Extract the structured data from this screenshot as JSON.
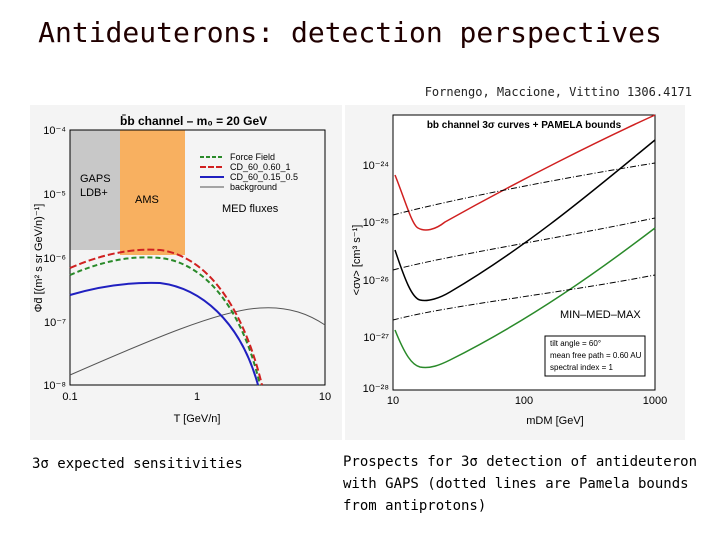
{
  "title": "Antideuterons: detection perspectives",
  "reference": "Fornengo, Maccione, Vittino 1306.4171",
  "left_figure": {
    "title": "b̄b channel – m₀ = 20 GeV",
    "y_ticks": [
      "10⁻⁴",
      "10⁻⁵",
      "10⁻⁶",
      "10⁻⁷",
      "10⁻⁸"
    ],
    "x_ticks": [
      "0.1",
      "1",
      "10"
    ],
    "x_label": "T [GeV/n]",
    "y_label": "Φd̄ [(m² s sr GeV/n)⁻¹]",
    "band_labels": [
      "GAPS",
      "LDB+",
      "AMS"
    ],
    "legend": [
      "Force Field",
      "CD_60_0.60_1",
      "CD_60_0.15_0.5",
      "background"
    ],
    "legend_note": "MED fluxes"
  },
  "right_figure": {
    "title": "bb channel 3σ curves + PAMELA bounds",
    "y_ticks": [
      "10⁻²⁴",
      "10⁻²⁵",
      "10⁻²⁶",
      "10⁻²⁷",
      "10⁻²⁸"
    ],
    "x_ticks": [
      "10",
      "100",
      "1000"
    ],
    "x_label": "mDM [GeV]",
    "y_label": "<σv> [cm³ s⁻¹]",
    "curve_label": "MIN–MED–MAX",
    "params": [
      "tilt angle = 60°",
      "mean free path = 0.60 AU",
      "spectral index = 1"
    ]
  },
  "caption_left": "3σ expected sensitivities",
  "caption_right": [
    "Prospects for 3σ detection of antideuteron",
    "with GAPS (dotted lines are Pamela bounds",
    "from antiprotons)"
  ]
}
